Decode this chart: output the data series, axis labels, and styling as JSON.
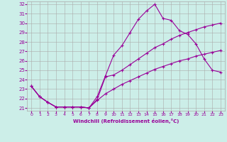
{
  "xlabel": "Windchill (Refroidissement éolien,°C)",
  "bg_color": "#cceee8",
  "line_color": "#990099",
  "grid_color": "#aaaaaa",
  "xlim": [
    -0.5,
    23.5
  ],
  "ylim": [
    20.7,
    32.3
  ],
  "yticks": [
    21,
    22,
    23,
    24,
    25,
    26,
    27,
    28,
    29,
    30,
    31,
    32
  ],
  "xticks": [
    0,
    1,
    2,
    3,
    4,
    5,
    6,
    7,
    8,
    9,
    10,
    11,
    12,
    13,
    14,
    15,
    16,
    17,
    18,
    19,
    20,
    21,
    22,
    23
  ],
  "curve1_x": [
    0,
    1,
    2,
    3,
    4,
    5,
    6,
    7,
    8,
    9,
    10,
    11,
    12,
    13,
    14,
    15,
    16,
    17,
    18,
    19,
    20,
    21,
    22,
    23
  ],
  "curve1_y": [
    23.3,
    22.2,
    21.6,
    21.1,
    21.1,
    21.1,
    21.1,
    21.0,
    22.2,
    24.4,
    26.6,
    27.6,
    29.0,
    30.4,
    31.3,
    32.0,
    30.5,
    30.3,
    29.2,
    28.8,
    27.8,
    26.2,
    25.0,
    24.8
  ],
  "curve2_x": [
    0,
    1,
    2,
    3,
    4,
    5,
    6,
    7,
    8,
    9,
    10,
    11,
    12,
    13,
    14,
    15,
    16,
    17,
    18,
    19,
    20,
    21,
    22,
    23
  ],
  "curve2_y": [
    23.3,
    22.2,
    21.6,
    21.1,
    21.1,
    21.1,
    21.1,
    21.0,
    21.9,
    24.3,
    24.5,
    25.0,
    25.6,
    26.2,
    26.8,
    27.4,
    27.8,
    28.3,
    28.7,
    29.0,
    29.3,
    29.6,
    29.8,
    30.0
  ],
  "curve3_x": [
    0,
    1,
    2,
    3,
    4,
    5,
    6,
    7,
    8,
    9,
    10,
    11,
    12,
    13,
    14,
    15,
    16,
    17,
    18,
    19,
    20,
    21,
    22,
    23
  ],
  "curve3_y": [
    23.3,
    22.2,
    21.6,
    21.1,
    21.1,
    21.1,
    21.1,
    21.0,
    21.8,
    22.5,
    23.0,
    23.5,
    23.9,
    24.3,
    24.7,
    25.1,
    25.4,
    25.7,
    26.0,
    26.2,
    26.5,
    26.7,
    26.9,
    27.1
  ]
}
